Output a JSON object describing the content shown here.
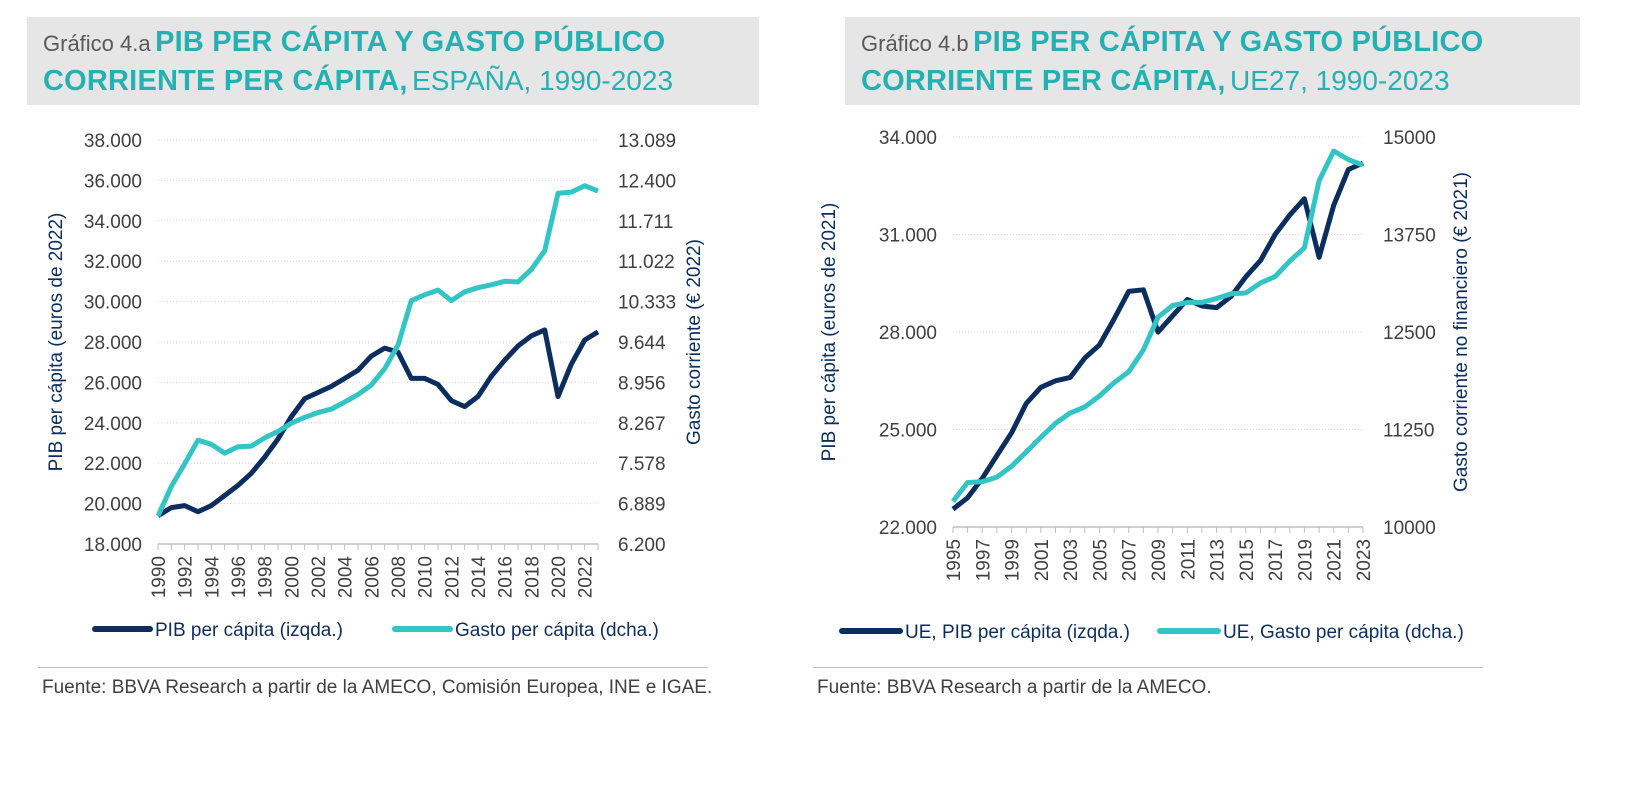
{
  "panel_a": {
    "title_prefix": "Gráfico 4.a",
    "title_bold": "PIB PER CÁPITA Y GASTO PÚBLICO CORRIENTE PER CÁPITA,",
    "title_rest": "ESPAÑA, 1990-2023",
    "source": "Fuente: BBVA Research a partir de la AMECO, Comisión Europea, INE e IGAE."
  },
  "panel_b": {
    "title_prefix": "Gráfico 4.b",
    "title_bold": "PIB PER CÁPITA Y GASTO PÚBLICO CORRIENTE PER CÁPITA,",
    "title_rest": "UE27, 1990-2023",
    "source": "Fuente: BBVA Research a partir de la AMECO."
  },
  "colors": {
    "dark": "#0b2e5e",
    "teal": "#33c5c5",
    "title": "#25b0b2"
  },
  "chart_data": [
    {
      "type": "line",
      "ylabel": "PIB per cápita (euros de 2022)",
      "y2label": "Gasto corriente  (€ 2022)",
      "ylim": [
        18000,
        38000
      ],
      "y2lim": [
        6200,
        13089
      ],
      "y_ticks": [
        "18.000",
        "20.000",
        "22.000",
        "24.000",
        "26.000",
        "28.000",
        "30.000",
        "32.000",
        "34.000",
        "36.000",
        "38.000"
      ],
      "y2_ticks": [
        "6.200",
        "6.889",
        "7.578",
        "8.267",
        "8.956",
        "9.644",
        "10.333",
        "11.022",
        "11.711",
        "12.400",
        "13.089"
      ],
      "x_tick_labels": [
        "1990",
        "1992",
        "1994",
        "1996",
        "1998",
        "2000",
        "2002",
        "2004",
        "2006",
        "2008",
        "2010",
        "2012",
        "2014",
        "2016",
        "2018",
        "2020",
        "2022"
      ],
      "grid": true,
      "legend_position": "bottom",
      "x": [
        1990,
        1991,
        1992,
        1993,
        1994,
        1995,
        1996,
        1997,
        1998,
        1999,
        2000,
        2001,
        2002,
        2003,
        2004,
        2005,
        2006,
        2007,
        2008,
        2009,
        2010,
        2011,
        2012,
        2013,
        2014,
        2015,
        2016,
        2017,
        2018,
        2019,
        2020,
        2021,
        2022,
        2023
      ],
      "series": [
        {
          "name": "PIB per cápita (izqda.)",
          "axis": "left",
          "color": "#0b2e5e",
          "values": [
            19400,
            19800,
            19900,
            19600,
            19900,
            20400,
            20900,
            21500,
            22300,
            23200,
            24300,
            25200,
            25500,
            25800,
            26200,
            26600,
            27300,
            27700,
            27500,
            26200,
            26200,
            25900,
            25100,
            24800,
            25300,
            26300,
            27100,
            27800,
            28300,
            28600,
            25300,
            26900,
            28100,
            28500
          ]
        },
        {
          "name": "Gasto per cápita (dcha.)",
          "axis": "right",
          "color": "#33c5c5",
          "values": [
            6680,
            7180,
            7570,
            7970,
            7900,
            7750,
            7860,
            7870,
            8010,
            8120,
            8260,
            8360,
            8440,
            8500,
            8620,
            8750,
            8910,
            9190,
            9590,
            10350,
            10450,
            10530,
            10350,
            10500,
            10570,
            10620,
            10680,
            10670,
            10880,
            11200,
            12180,
            12200,
            12310,
            12220
          ]
        }
      ]
    },
    {
      "type": "line",
      "ylabel": "PIB per cápita (euros de 2021)",
      "y2label": "Gasto corriente no financiero (€ 2021)",
      "ylim": [
        22000,
        34000
      ],
      "y2lim": [
        10000,
        15000
      ],
      "y_ticks": [
        "22.000",
        "25.000",
        "28.000",
        "31.000",
        "34.000"
      ],
      "y2_ticks": [
        "10000",
        "11250",
        "12500",
        "13750",
        "15000"
      ],
      "x_tick_labels": [
        "1995",
        "1997",
        "1999",
        "2001",
        "2003",
        "2005",
        "2007",
        "2009",
        "2011",
        "2013",
        "2015",
        "2017",
        "2019",
        "2021",
        "2023"
      ],
      "grid": true,
      "legend_position": "bottom",
      "x": [
        1995,
        1996,
        1997,
        1998,
        1999,
        2000,
        2001,
        2002,
        2003,
        2004,
        2005,
        2006,
        2007,
        2008,
        2009,
        2010,
        2011,
        2012,
        2013,
        2014,
        2015,
        2016,
        2017,
        2018,
        2019,
        2020,
        2021,
        2022,
        2023
      ],
      "series": [
        {
          "name": "UE, PIB per cápita (izqda.)",
          "axis": "left",
          "color": "#0b2e5e",
          "values": [
            22550,
            22900,
            23500,
            24200,
            24900,
            25800,
            26300,
            26500,
            26600,
            27200,
            27600,
            28400,
            29250,
            29300,
            28000,
            28500,
            29000,
            28800,
            28750,
            29100,
            29700,
            30200,
            31000,
            31600,
            32100,
            30300,
            31900,
            33000,
            33200
          ]
        },
        {
          "name": "UE, Gasto per cápita (dcha.)",
          "axis": "right",
          "color": "#33c5c5",
          "values": [
            10330,
            10570,
            10580,
            10640,
            10780,
            10960,
            11150,
            11330,
            11460,
            11540,
            11680,
            11850,
            11990,
            12270,
            12690,
            12840,
            12880,
            12880,
            12930,
            12990,
            13000,
            13130,
            13210,
            13410,
            13580,
            14440,
            14820,
            14710,
            14640
          ]
        }
      ]
    }
  ]
}
